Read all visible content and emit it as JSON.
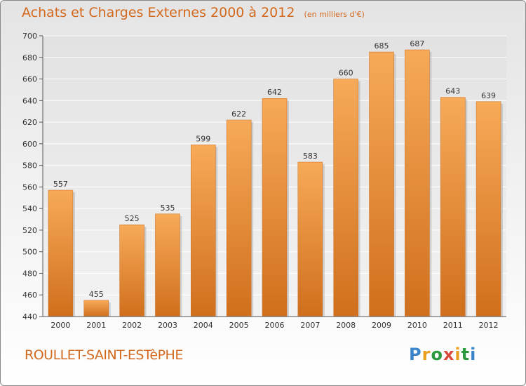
{
  "title": "Achats et Charges Externes 2000 à 2012",
  "subtitle": "(en milliers d'€)",
  "commune": "ROULLET-SAINT-ESTèPHE",
  "logo": {
    "text": "Proxiti"
  },
  "colors": {
    "bar_light": "#f6a755",
    "bar_dark": "#d06f1c",
    "title": "#d2691e"
  },
  "chart_data": {
    "type": "bar",
    "categories": [
      "2000",
      "2001",
      "2002",
      "2003",
      "2004",
      "2005",
      "2006",
      "2007",
      "2008",
      "2009",
      "2010",
      "2011",
      "2012"
    ],
    "values": [
      557,
      455,
      525,
      535,
      599,
      622,
      642,
      583,
      660,
      685,
      687,
      643,
      639
    ],
    "ylim": [
      440,
      700
    ],
    "yticks": [
      440,
      460,
      480,
      500,
      520,
      540,
      560,
      580,
      600,
      620,
      640,
      660,
      680,
      700
    ],
    "grid": true,
    "xlabel": "",
    "ylabel": ""
  }
}
